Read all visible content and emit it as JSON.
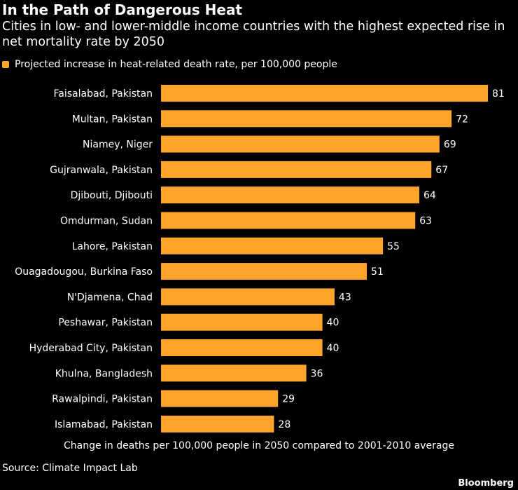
{
  "colors": {
    "bar": "#FFA42B",
    "background": "#000000",
    "text": "#FFFFFF"
  },
  "source": "Source: Climate Impact Lab",
  "brand": "Bloomberg",
  "chart_data": {
    "type": "bar",
    "orientation": "horizontal",
    "title": "In the Path of Dangerous Heat",
    "subtitle": "Cities in low- and lower-middle income countries with the highest expected rise in net mortality rate by 2050",
    "legend": [
      "Projected increase in heat-related death rate, per 100,000 people"
    ],
    "xlabel": "Change in deaths per 100,000 people in 2050 compared to 2001-2010 average",
    "ylabel": "",
    "xlim": [
      0,
      81
    ],
    "categories": [
      "Faisalabad, Pakistan",
      "Multan, Pakistan",
      "Niamey, Niger",
      "Gujranwala, Pakistan",
      "Djibouti, Djibouti",
      "Omdurman, Sudan",
      "Lahore, Pakistan",
      "Ouagadougou, Burkina Faso",
      "N'Djamena, Chad",
      "Peshawar, Pakistan",
      "Hyderabad City, Pakistan",
      "Khulna, Bangladesh",
      "Rawalpindi, Pakistan",
      "Islamabad, Pakistan"
    ],
    "values": [
      81,
      72,
      69,
      67,
      64,
      63,
      55,
      51,
      43,
      40,
      40,
      36,
      29,
      28
    ]
  }
}
